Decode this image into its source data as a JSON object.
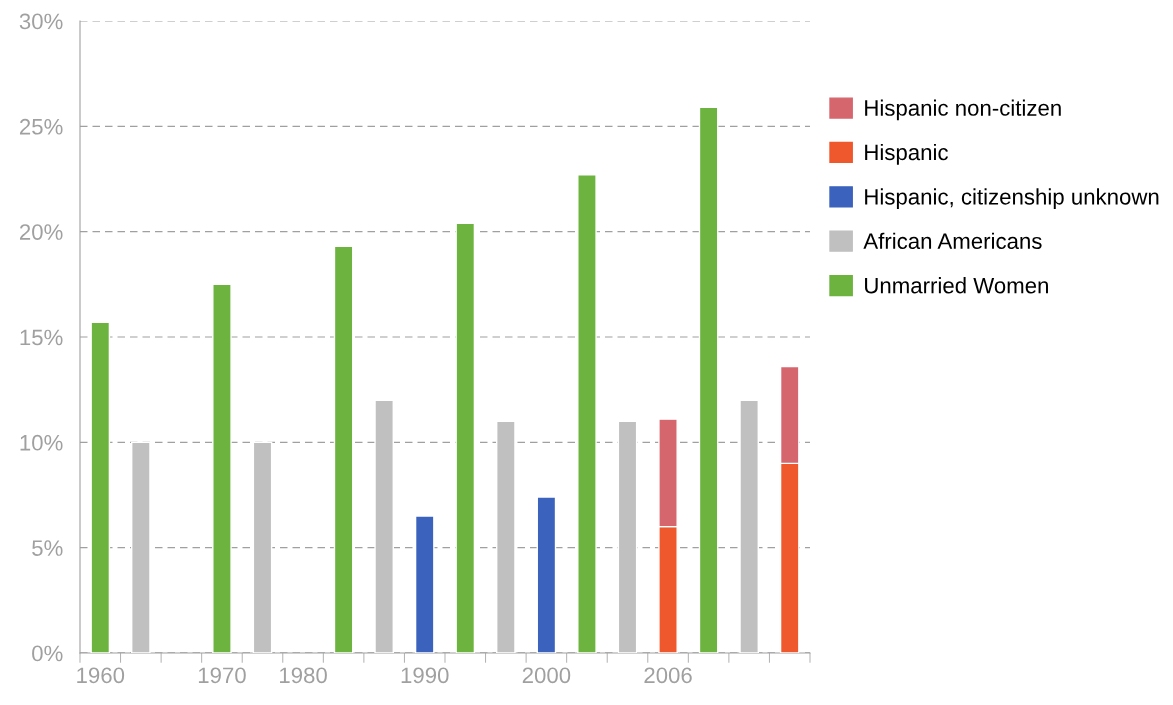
{
  "chart_data": {
    "type": "bar",
    "stacked": true,
    "categories": [
      "1960",
      null,
      null,
      "1970",
      null,
      "1980",
      null,
      null,
      "1990",
      null,
      null,
      "2000",
      null,
      null,
      "2006",
      null,
      null,
      null
    ],
    "series": [
      {
        "name": "Unmarried Women",
        "color": "#6db33f",
        "values": [
          15.7,
          null,
          null,
          17.5,
          null,
          null,
          19.3,
          null,
          null,
          20.4,
          null,
          null,
          22.7,
          null,
          null,
          25.9,
          null,
          null
        ]
      },
      {
        "name": "African Americans",
        "color": "#c0c0c0",
        "values": [
          null,
          10,
          null,
          null,
          10,
          null,
          null,
          12,
          null,
          null,
          11,
          null,
          null,
          11,
          null,
          null,
          12,
          null
        ]
      },
      {
        "name": "Hispanic, citizenship unknown",
        "color": "#3b62bd",
        "values": [
          null,
          null,
          null,
          null,
          null,
          null,
          null,
          null,
          6.5,
          null,
          null,
          7.4,
          null,
          null,
          null,
          null,
          null,
          null
        ]
      },
      {
        "name": "Hispanic",
        "color": "#ef572c",
        "values": [
          null,
          null,
          null,
          null,
          null,
          null,
          null,
          null,
          null,
          null,
          null,
          null,
          null,
          null,
          6.0,
          null,
          null,
          9.0
        ]
      },
      {
        "name": "Hispanic non-citizen",
        "color": "#d6666e",
        "values": [
          null,
          null,
          null,
          null,
          null,
          null,
          null,
          null,
          null,
          null,
          null,
          null,
          null,
          null,
          5.1,
          null,
          null,
          4.6
        ]
      }
    ],
    "ylim": [
      0,
      30
    ],
    "yticks": [
      {
        "value": 0,
        "label": "0%"
      },
      {
        "value": 5,
        "label": "5%"
      },
      {
        "value": 10,
        "label": "10%"
      },
      {
        "value": 15,
        "label": "15%"
      },
      {
        "value": 20,
        "label": "20%"
      },
      {
        "value": 25,
        "label": "25%"
      },
      {
        "value": 30,
        "label": "30%"
      }
    ],
    "grid": "y",
    "legend": "right"
  }
}
